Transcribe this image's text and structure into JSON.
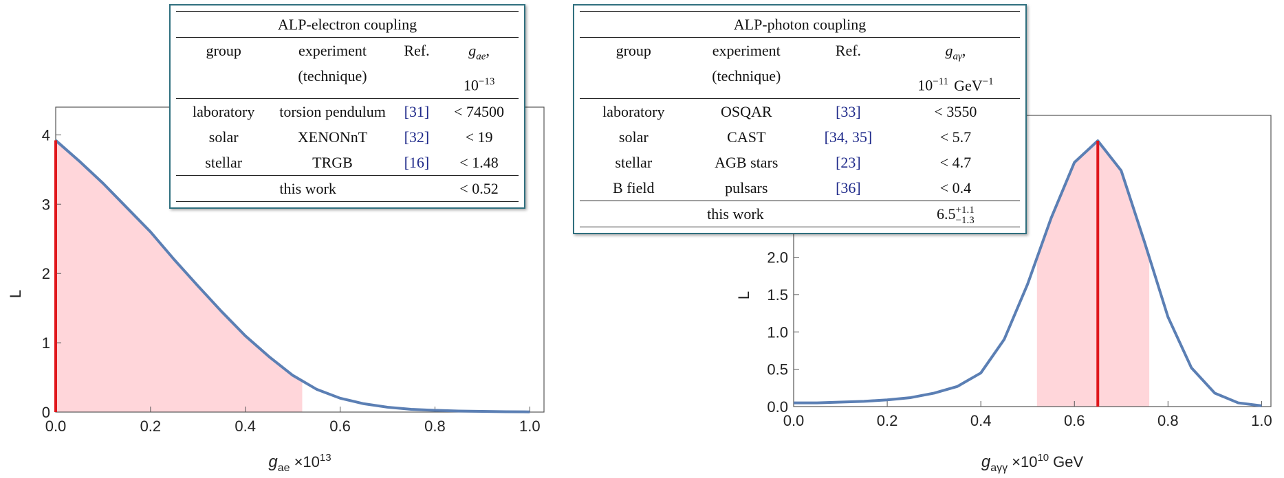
{
  "chart_data": [
    {
      "type": "line",
      "y_label": "L",
      "x_label": {
        "symbol": "g",
        "subscript": "ae",
        "multiplier": "×10",
        "exponent": "13"
      },
      "x": [
        0,
        0.05,
        0.1,
        0.15,
        0.2,
        0.25,
        0.3,
        0.35,
        0.4,
        0.45,
        0.5,
        0.55,
        0.6,
        0.65,
        0.7,
        0.75,
        0.8,
        0.85,
        0.9,
        0.95,
        1.0
      ],
      "series": [
        {
          "color": "#5b7fb4",
          "values": [
            3.92,
            3.62,
            3.3,
            2.95,
            2.6,
            2.2,
            1.82,
            1.45,
            1.1,
            0.8,
            0.53,
            0.33,
            0.2,
            0.12,
            0.07,
            0.04,
            0.025,
            0.015,
            0.01,
            0.005,
            0.003
          ]
        }
      ],
      "band": [
        0,
        0.52
      ],
      "band_color": "#ffd6da",
      "marker": 0,
      "marker_color": "#e0161b",
      "xlim": [
        0,
        1.03
      ],
      "ylim": [
        0,
        4.4
      ],
      "xticks": [
        {
          "value": 0,
          "label": "0.0"
        },
        0.2,
        0.4,
        0.6,
        0.8,
        {
          "value": 1,
          "label": "1.0"
        }
      ],
      "yticks": [
        0,
        1,
        2,
        3,
        4
      ]
    },
    {
      "type": "line",
      "y_label": "L",
      "x_label": {
        "symbol": "g",
        "subscript": "aγγ",
        "multiplier": "×10",
        "exponent": "10",
        "unit": "GeV"
      },
      "x": [
        0,
        0.05,
        0.1,
        0.15,
        0.2,
        0.25,
        0.3,
        0.35,
        0.4,
        0.45,
        0.5,
        0.55,
        0.6,
        0.65,
        0.7,
        0.75,
        0.8,
        0.85,
        0.9,
        0.95,
        1.0
      ],
      "series": [
        {
          "color": "#5b7fb4",
          "values": [
            0.05,
            0.05,
            0.06,
            0.07,
            0.09,
            0.12,
            0.18,
            0.27,
            0.45,
            0.9,
            1.64,
            2.52,
            3.27,
            3.56,
            3.16,
            2.2,
            1.2,
            0.52,
            0.18,
            0.05,
            0.01
          ]
        }
      ],
      "band": [
        0.52,
        0.76
      ],
      "band_color": "#ffd6da",
      "marker": 0.65,
      "marker_color": "#e0161b",
      "xlim": [
        0,
        1.02
      ],
      "ylim": [
        0,
        3.9
      ],
      "xticks": [
        {
          "value": 0,
          "label": "0.0"
        },
        0.2,
        0.4,
        0.6,
        0.8,
        {
          "value": 1,
          "label": "1.0"
        }
      ],
      "yticks": [
        {
          "value": 0,
          "label": "0.0"
        },
        0.5,
        {
          "value": 1,
          "label": "1.0"
        },
        1.5,
        {
          "value": 2,
          "label": "2.0"
        }
      ]
    }
  ],
  "tables": [
    {
      "title": "ALP-electron coupling",
      "columns": [
        [
          "group"
        ],
        [
          "experiment",
          "(technique)"
        ],
        [
          "Ref."
        ],
        {
          "symbol": "g",
          "subscript": "ae",
          "suffix": ",",
          "base": "10",
          "exponent": "−13"
        }
      ],
      "rows": [
        [
          "laboratory",
          "torsion pendulum",
          "[31]",
          "< 74500"
        ],
        [
          "solar",
          "XENONnT",
          "[32]",
          "< 19"
        ],
        [
          "stellar",
          "TRGB",
          "[16]",
          "< 1.48"
        ]
      ],
      "summary": {
        "label": "this work",
        "value": "< 0.52"
      }
    },
    {
      "title": "ALP-photon coupling",
      "columns": [
        [
          "group"
        ],
        [
          "experiment",
          "(technique)"
        ],
        [
          "Ref."
        ],
        {
          "symbol": "g",
          "subscript": "aγ",
          "suffix": ",",
          "base": "10",
          "exponent": "−11",
          "unit": "GeV",
          "unit_exponent": "−1"
        }
      ],
      "rows": [
        [
          "laboratory",
          "OSQAR",
          "[33]",
          "< 3550"
        ],
        [
          "solar",
          "CAST",
          "[34, 35]",
          "< 5.7"
        ],
        [
          "stellar",
          "AGB stars",
          "[23]",
          "< 4.7"
        ],
        [
          "B field",
          "pulsars",
          "[36]",
          "< 0.4"
        ]
      ],
      "summary": {
        "label": "this work",
        "value": {
          "value": "6.5",
          "upper": "+1.1",
          "lower": "−1.3"
        }
      }
    }
  ]
}
